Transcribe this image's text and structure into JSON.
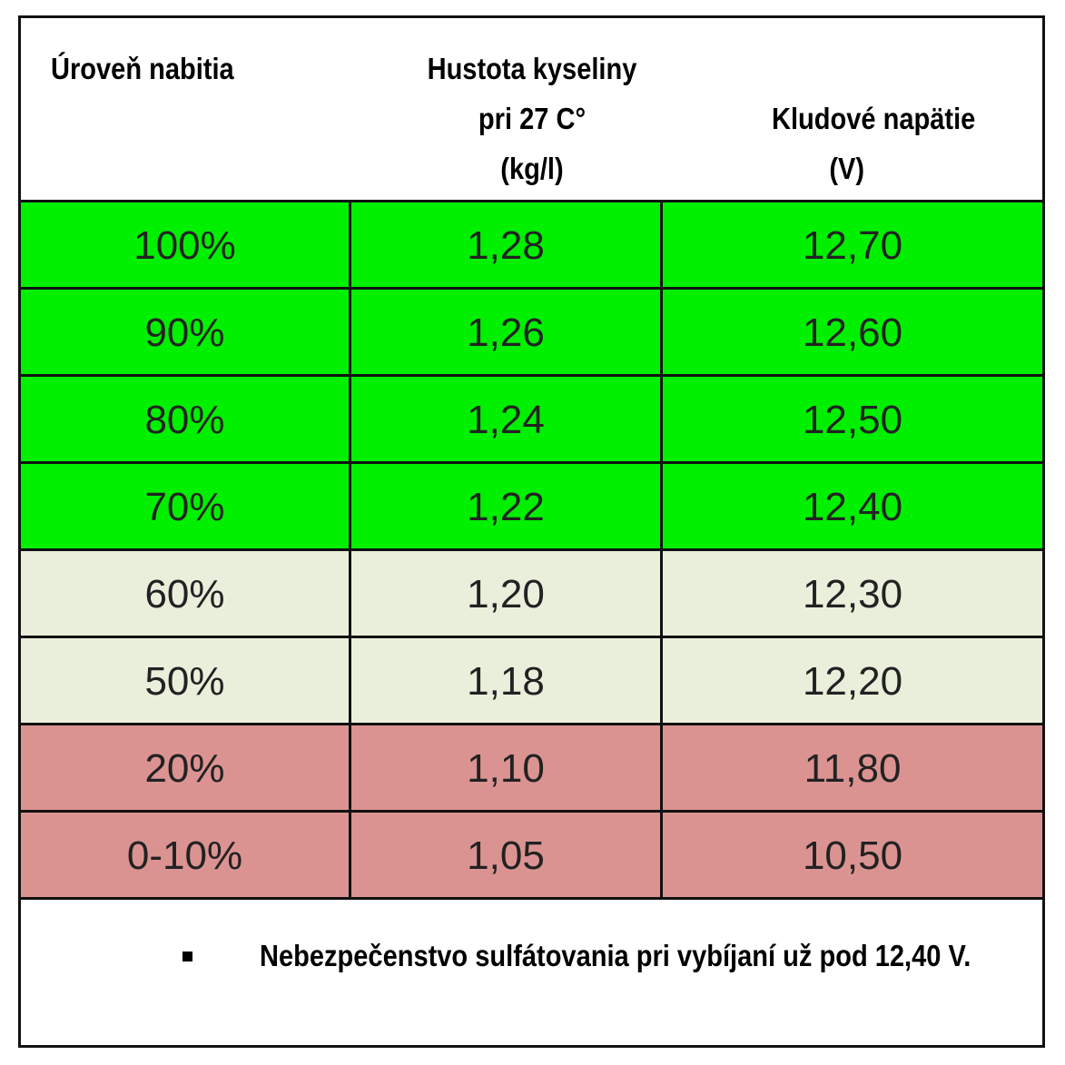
{
  "table": {
    "headers": {
      "level": "Úroveň nabitia",
      "density": "Hustota kyseliny\npri 27 C°\n(kg/l)",
      "voltage_line1": "Kludové napätie",
      "voltage_line2": "(V)"
    },
    "colors": {
      "good": "#00f000",
      "medium": "#eaefdc",
      "bad": "#db9392"
    },
    "rows": [
      {
        "level": "100%",
        "density": "1,28",
        "voltage": "12,70",
        "status": "good"
      },
      {
        "level": "90%",
        "density": "1,26",
        "voltage": "12,60",
        "status": "good"
      },
      {
        "level": "80%",
        "density": "1,24",
        "voltage": "12,50",
        "status": "good"
      },
      {
        "level": "70%",
        "density": "1,22",
        "voltage": "12,40",
        "status": "good"
      },
      {
        "level": "60%",
        "density": "1,20",
        "voltage": "12,30",
        "status": "medium"
      },
      {
        "level": "50%",
        "density": "1,18",
        "voltage": "12,20",
        "status": "medium"
      },
      {
        "level": "20%",
        "density": "1,10",
        "voltage": "11,80",
        "status": "bad"
      },
      {
        "level": "0-10%",
        "density": "1,05",
        "voltage": "10,50",
        "status": "bad"
      }
    ]
  },
  "note": {
    "text": "Nebezpečenstvo sulfátovania pri vybíjaní už pod 12,40 V."
  }
}
